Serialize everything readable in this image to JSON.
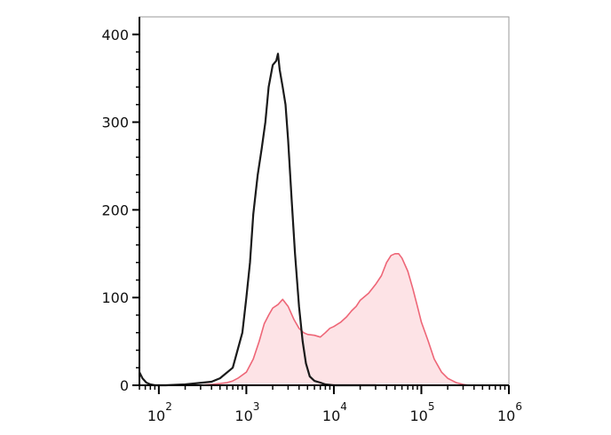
{
  "chart_data": {
    "type": "area",
    "title": "",
    "xlabel": "",
    "ylabel": "",
    "x_scale": "log",
    "xlim": [
      60,
      1000000
    ],
    "ylim": [
      0,
      420
    ],
    "grid": false,
    "legend": "none",
    "x_ticks": [
      {
        "base": "10",
        "exp": "2",
        "value": 100
      },
      {
        "base": "10",
        "exp": "3",
        "value": 1000
      },
      {
        "base": "10",
        "exp": "4",
        "value": 10000
      },
      {
        "base": "10",
        "exp": "5",
        "value": 100000
      },
      {
        "base": "10",
        "exp": "6",
        "value": 1000000
      }
    ],
    "y_ticks": [
      {
        "label": "0",
        "value": 0
      },
      {
        "label": "100",
        "value": 100
      },
      {
        "label": "200",
        "value": 200
      },
      {
        "label": "300",
        "value": 300
      },
      {
        "label": "400",
        "value": 400
      }
    ],
    "series": [
      {
        "style": "line",
        "color": "#1a1a1a",
        "x": [
          60,
          65,
          72,
          80,
          90,
          120,
          200,
          400,
          500,
          700,
          900,
          1000,
          1100,
          1200,
          1350,
          1500,
          1650,
          1800,
          2000,
          2200,
          2300,
          2400,
          2600,
          2800,
          3000,
          3300,
          3600,
          4000,
          4400,
          4800,
          5300,
          6000,
          7000,
          8000,
          10000,
          15000,
          30000
        ],
        "y": [
          15,
          8,
          3,
          1,
          0,
          0,
          1,
          4,
          8,
          20,
          60,
          100,
          140,
          195,
          240,
          270,
          300,
          340,
          365,
          370,
          378,
          360,
          340,
          320,
          280,
          210,
          150,
          90,
          50,
          25,
          10,
          5,
          3,
          1,
          0,
          0,
          0
        ]
      },
      {
        "style": "filled",
        "color": "#ee6677",
        "fill": "#fde3e6",
        "x": [
          200,
          300,
          400,
          500,
          600,
          700,
          800,
          1000,
          1200,
          1400,
          1600,
          1800,
          2000,
          2300,
          2600,
          3000,
          3500,
          4000,
          4500,
          5000,
          6000,
          7000,
          8000,
          9000,
          10000,
          12000,
          14000,
          16000,
          18000,
          20000,
          25000,
          30000,
          35000,
          40000,
          45000,
          50000,
          55000,
          60000,
          70000,
          80000,
          90000,
          100000,
          120000,
          140000,
          170000,
          200000,
          250000,
          300000,
          350000
        ],
        "y": [
          0,
          0,
          1,
          2,
          3,
          5,
          8,
          15,
          30,
          50,
          70,
          80,
          88,
          92,
          98,
          90,
          75,
          65,
          60,
          58,
          57,
          55,
          60,
          65,
          67,
          72,
          78,
          85,
          90,
          97,
          105,
          115,
          125,
          140,
          148,
          150,
          150,
          145,
          130,
          110,
          90,
          72,
          50,
          30,
          15,
          8,
          3,
          1,
          0
        ]
      }
    ]
  }
}
